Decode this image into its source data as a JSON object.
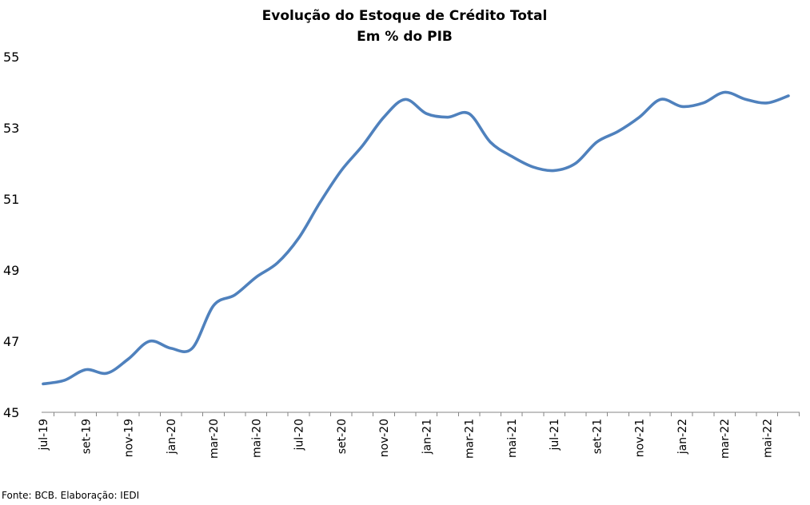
{
  "chart_data": {
    "type": "line",
    "title": "Evolução do Estoque de Crédito Total",
    "subtitle": "Em % do PIB",
    "xlabel": "",
    "ylabel": "",
    "ylim": [
      45,
      55
    ],
    "yticks": [
      45,
      47,
      49,
      51,
      53,
      55
    ],
    "grid": false,
    "legend": "none",
    "x": [
      "jul-19",
      "ago-19",
      "set-19",
      "out-19",
      "nov-19",
      "dez-19",
      "jan-20",
      "fev-20",
      "mar-20",
      "abr-20",
      "mai-20",
      "jun-20",
      "jul-20",
      "ago-20",
      "set-20",
      "out-20",
      "nov-20",
      "dez-20",
      "jan-21",
      "fev-21",
      "mar-21",
      "abr-21",
      "mai-21",
      "jun-21",
      "jul-21",
      "ago-21",
      "set-21",
      "out-21",
      "nov-21",
      "dez-21",
      "jan-22",
      "fev-22",
      "mar-22",
      "abr-22",
      "mai-22",
      "jun-22"
    ],
    "xticks": [
      "jul-19",
      "set-19",
      "nov-19",
      "jan-20",
      "mar-20",
      "mai-20",
      "jul-20",
      "set-20",
      "nov-20",
      "jan-21",
      "mar-21",
      "mai-21",
      "jul-21",
      "set-21",
      "nov-21",
      "jan-22",
      "mar-22",
      "mai-22"
    ],
    "series": [
      {
        "name": "",
        "color": "#4F81BD",
        "values": [
          45.8,
          45.9,
          46.2,
          46.1,
          46.5,
          47.0,
          46.8,
          46.8,
          48.0,
          48.3,
          48.8,
          49.2,
          49.9,
          50.9,
          51.8,
          52.5,
          53.3,
          53.8,
          53.4,
          53.3,
          53.4,
          52.6,
          52.2,
          51.9,
          51.8,
          52.0,
          52.6,
          52.9,
          53.3,
          53.8,
          53.6,
          53.7,
          54.0,
          53.8,
          53.7,
          53.9
        ]
      }
    ]
  },
  "source": "Fonte: BCB. Elaboração: IEDI"
}
